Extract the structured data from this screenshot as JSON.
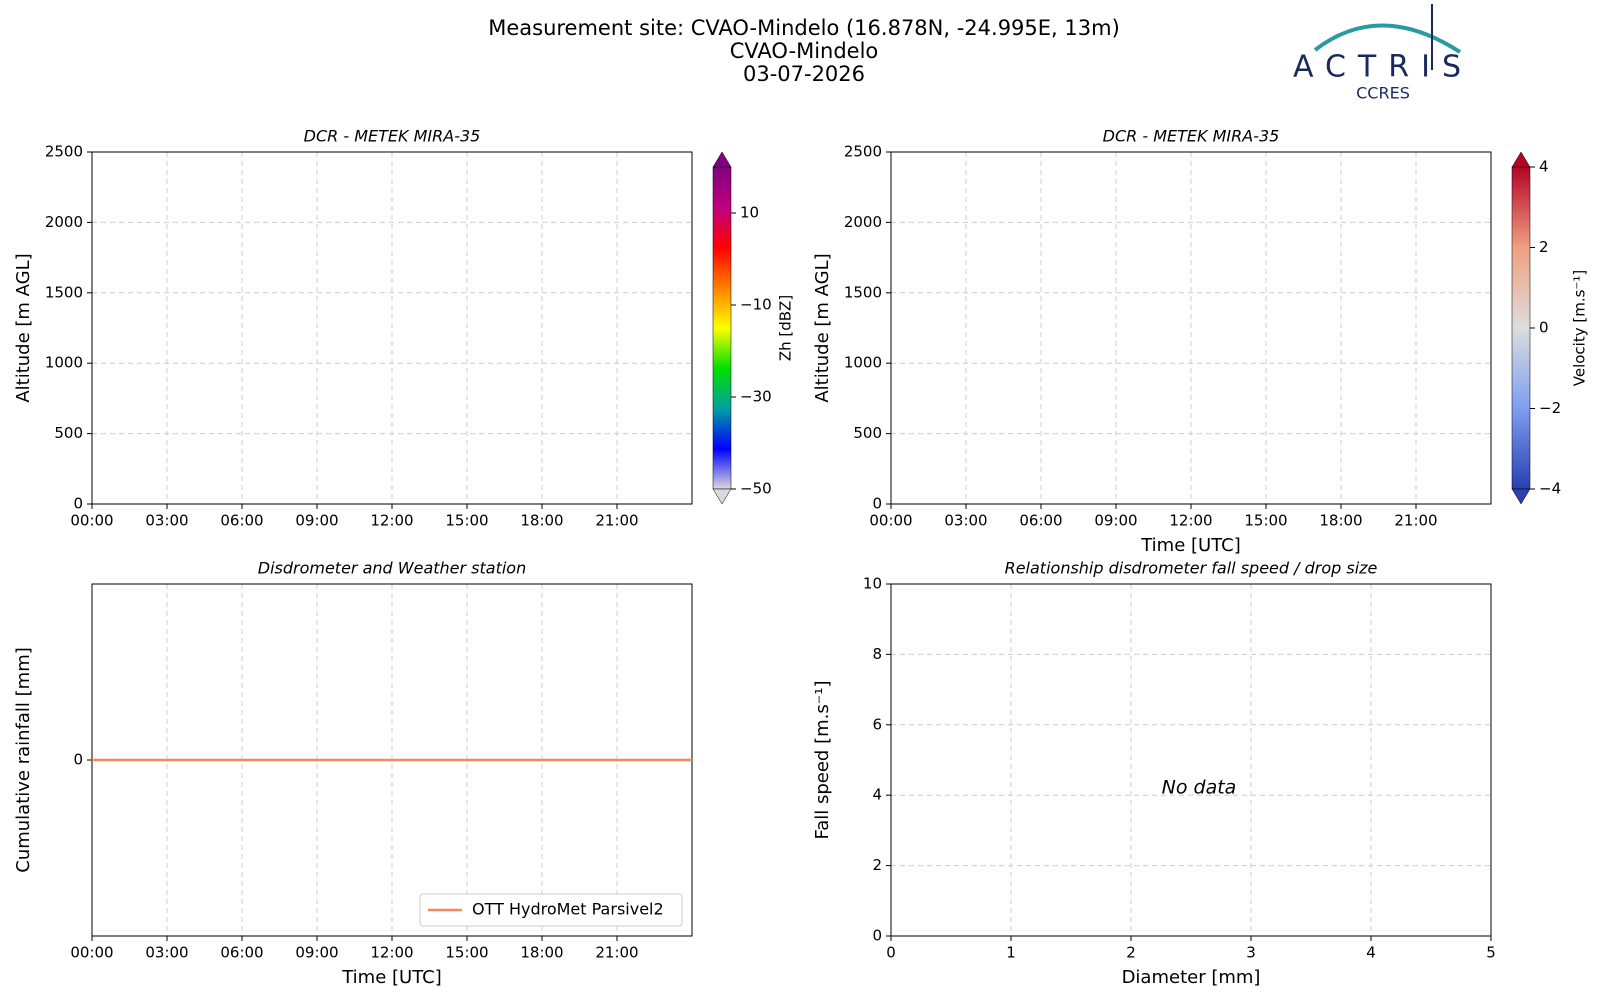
{
  "header": {
    "title_lines": [
      "Measurement site: CVAO-Mindelo (16.878N, -24.995E, 13m)",
      "CVAO-Mindelo",
      "03-07-2026"
    ],
    "logo": {
      "name": "ACTRIS",
      "sub": "CCRES"
    }
  },
  "chart_data": [
    {
      "type": "heatmap",
      "title": "DCR - METEK MIRA-35",
      "ylabel": "Altitude [m AGL]",
      "xlim": [
        0,
        24
      ],
      "xticks": [
        {
          "value": 0,
          "label": "00:00"
        },
        {
          "value": 3,
          "label": "03:00"
        },
        {
          "value": 6,
          "label": "06:00"
        },
        {
          "value": 9,
          "label": "09:00"
        },
        {
          "value": 12,
          "label": "12:00"
        },
        {
          "value": 15,
          "label": "15:00"
        },
        {
          "value": 18,
          "label": "18:00"
        },
        {
          "value": 21,
          "label": "21:00"
        }
      ],
      "ylim": [
        0,
        2500
      ],
      "yticks": [
        0,
        500,
        1000,
        1500,
        2000,
        2500
      ],
      "grid": true,
      "colorbar": {
        "label": "Zh [dBZ]",
        "lim": [
          -50,
          20
        ],
        "ticks": [
          {
            "value": -50,
            "label": "−50"
          },
          {
            "value": -30,
            "label": "−30"
          },
          {
            "value": -10,
            "label": "−10"
          },
          10
        ],
        "colors": [
          "#d9d9d9",
          "#0000ff",
          "#00a0a0",
          "#00e000",
          "#ffff00",
          "#ff8000",
          "#ff0000",
          "#c00080",
          "#800080"
        ]
      }
    },
    {
      "type": "heatmap",
      "title": "DCR - METEK MIRA-35",
      "ylabel": "Altitude [m AGL]",
      "xlabel": "Time [UTC]",
      "xlim": [
        0,
        24
      ],
      "xticks": [
        {
          "value": 0,
          "label": "00:00"
        },
        {
          "value": 3,
          "label": "03:00"
        },
        {
          "value": 6,
          "label": "06:00"
        },
        {
          "value": 9,
          "label": "09:00"
        },
        {
          "value": 12,
          "label": "12:00"
        },
        {
          "value": 15,
          "label": "15:00"
        },
        {
          "value": 18,
          "label": "18:00"
        },
        {
          "value": 21,
          "label": "21:00"
        }
      ],
      "ylim": [
        0,
        2500
      ],
      "yticks": [
        0,
        500,
        1000,
        1500,
        2000,
        2500
      ],
      "grid": true,
      "colorbar": {
        "label": "Velocity [m.s⁻¹]",
        "lim": [
          -4,
          4
        ],
        "ticks": [
          {
            "value": -4,
            "label": "−4"
          },
          {
            "value": -2,
            "label": "−2"
          },
          0,
          2,
          4
        ],
        "colors": [
          "#2a3fb0",
          "#7d9ef0",
          "#dddddd",
          "#f0a080",
          "#b40426"
        ]
      }
    },
    {
      "type": "line",
      "title": "Disdrometer and Weather station",
      "ylabel": "Cumulative rainfall [mm]",
      "xlabel": "Time [UTC]",
      "xlim": [
        0,
        24
      ],
      "xticks": [
        {
          "value": 0,
          "label": "00:00"
        },
        {
          "value": 3,
          "label": "03:00"
        },
        {
          "value": 6,
          "label": "06:00"
        },
        {
          "value": 9,
          "label": "09:00"
        },
        {
          "value": 12,
          "label": "12:00"
        },
        {
          "value": 15,
          "label": "15:00"
        },
        {
          "value": 18,
          "label": "18:00"
        },
        {
          "value": 21,
          "label": "21:00"
        }
      ],
      "ylim": [
        -0.055,
        0.055
      ],
      "yticks": [
        0
      ],
      "grid": true,
      "legend": "lower right",
      "x": [
        0,
        24
      ],
      "series": [
        {
          "name": "OTT HydroMet Parsivel2",
          "color": "#f08a5d",
          "values": [
            0,
            0
          ]
        }
      ]
    },
    {
      "type": "scatter",
      "title": "Relationship disdrometer fall speed / drop size",
      "ylabel": "Fall speed [m.s⁻¹]",
      "xlabel": "Diameter [mm]",
      "xlim": [
        0,
        5
      ],
      "xticks": [
        0,
        1,
        2,
        3,
        4,
        5
      ],
      "ylim": [
        0,
        10
      ],
      "yticks": [
        0,
        2,
        4,
        6,
        8,
        10
      ],
      "grid": true,
      "annotation": "No data",
      "x": [],
      "values": []
    }
  ]
}
